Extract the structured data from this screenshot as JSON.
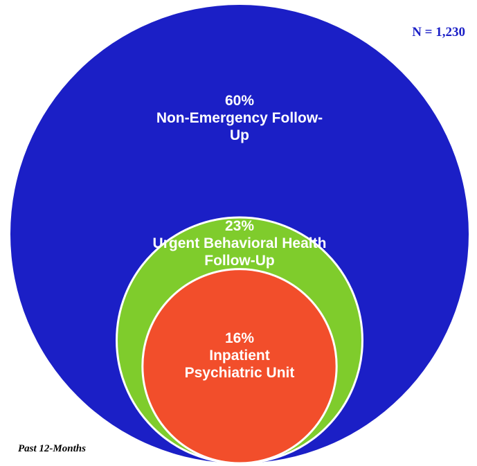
{
  "chart_data": {
    "type": "nested",
    "categories": [
      "Non-Emergency Follow-Up",
      "Urgent Behavioral Health Follow-Up",
      "Inpatient Psychiatric Unit"
    ],
    "values": [
      60,
      23,
      16
    ],
    "value_labels": [
      "60%",
      "23%",
      "16%"
    ],
    "colors": [
      "#1b1fc6",
      "#7fcc2c",
      "#f24e2b"
    ],
    "annotation": "N = 1,230",
    "note": "Past 12-Months"
  }
}
